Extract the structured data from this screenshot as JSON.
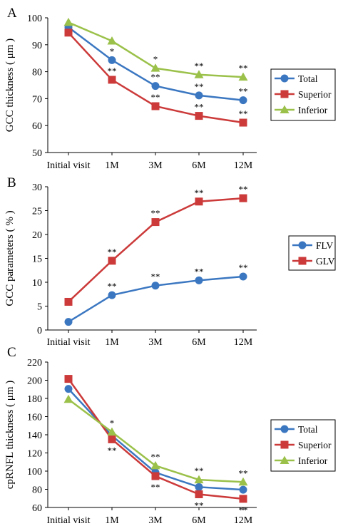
{
  "colors": {
    "total": "#3b77c1",
    "superior": "#cc3a3a",
    "inferior": "#9bc14a",
    "flv": "#3b77c1",
    "glv": "#cc3a3a"
  },
  "chart_data": [
    {
      "type": "line",
      "panel_letter": "A",
      "categories": [
        "Initial visit",
        "1M",
        "3M",
        "6M",
        "12M"
      ],
      "ylabel": "GCC thickness ( μm )",
      "ylim": [
        50,
        100
      ],
      "yticks": [
        "50",
        "60",
        "70",
        "80",
        "90",
        "100"
      ],
      "legend_position": "right",
      "grid": false,
      "series": [
        {
          "name": "Total",
          "color": "#3b77c1",
          "marker": "circle",
          "values": [
            96.5,
            84.3,
            74.7,
            71.2,
            69.4
          ],
          "significance": [
            "",
            "*",
            "**",
            "**",
            "**"
          ],
          "sig_side": "above"
        },
        {
          "name": "Superior",
          "color": "#cc3a3a",
          "marker": "square",
          "values": [
            94.5,
            77.0,
            67.2,
            63.6,
            61.1
          ],
          "significance": [
            "",
            "**",
            "**",
            "**",
            "**"
          ],
          "sig_side": "above"
        },
        {
          "name": "Inferior",
          "color": "#9bc14a",
          "marker": "triangle",
          "values": [
            98.3,
            91.4,
            81.3,
            78.9,
            78.0
          ],
          "significance": [
            "",
            "",
            "*",
            "**",
            "**"
          ],
          "sig_side": "above"
        }
      ]
    },
    {
      "type": "line",
      "panel_letter": "B",
      "categories": [
        "Initial visit",
        "1M",
        "3M",
        "6M",
        "12M"
      ],
      "ylabel": "GCC parameters ( % )",
      "ylim": [
        0,
        30
      ],
      "yticks": [
        "0",
        "5",
        "10",
        "15",
        "20",
        "25",
        "30"
      ],
      "legend_position": "right",
      "grid": false,
      "series": [
        {
          "name": "FLV",
          "color": "#3b77c1",
          "marker": "circle",
          "values": [
            1.7,
            7.3,
            9.3,
            10.4,
            11.2
          ],
          "significance": [
            "",
            "**",
            "**",
            "**",
            "**"
          ],
          "sig_side": "above"
        },
        {
          "name": "GLV",
          "color": "#cc3a3a",
          "marker": "square",
          "values": [
            5.9,
            14.5,
            22.6,
            26.9,
            27.6
          ],
          "significance": [
            "",
            "**",
            "**",
            "**",
            "**"
          ],
          "sig_side": "above"
        }
      ]
    },
    {
      "type": "line",
      "panel_letter": "C",
      "categories": [
        "Initial visit",
        "1M",
        "3M",
        "6M",
        "12M"
      ],
      "ylabel": "cpRNFL thickness ( μm )",
      "ylim": [
        60,
        220
      ],
      "yticks": [
        "60",
        "80",
        "100",
        "120",
        "140",
        "160",
        "180",
        "200",
        "220"
      ],
      "legend_position": "right",
      "grid": false,
      "series": [
        {
          "name": "Total",
          "color": "#3b77c1",
          "marker": "circle",
          "values": [
            190.5,
            139.0,
            98.5,
            82.5,
            79.5
          ],
          "significance": [
            "",
            "",
            "",
            "",
            ""
          ],
          "sig_side": "above"
        },
        {
          "name": "Superior",
          "color": "#cc3a3a",
          "marker": "square",
          "values": [
            201.5,
            135.0,
            94.5,
            74.5,
            69.5
          ],
          "significance": [
            "",
            "**",
            "**",
            "**",
            "**"
          ],
          "sig_side": "below"
        },
        {
          "name": "Inferior",
          "color": "#9bc14a",
          "marker": "triangle",
          "values": [
            179.0,
            143.0,
            106.0,
            90.5,
            88.0
          ],
          "significance": [
            "",
            "*",
            "**",
            "**",
            "**"
          ],
          "sig_side": "above"
        }
      ]
    }
  ]
}
